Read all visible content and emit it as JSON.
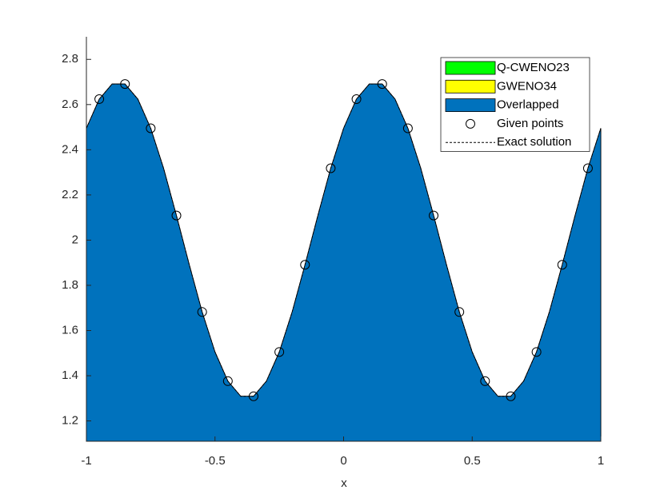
{
  "chart_data": {
    "type": "area",
    "xlabel": "x",
    "x": [
      -1,
      -0.95,
      -0.9,
      -0.85,
      -0.8,
      -0.75,
      -0.7,
      -0.65,
      -0.6,
      -0.55,
      -0.5,
      -0.45,
      -0.4,
      -0.35,
      -0.3,
      -0.25,
      -0.2,
      -0.15,
      -0.1,
      -0.05,
      0,
      0.05,
      0.1,
      0.15,
      0.2,
      0.25,
      0.3,
      0.35,
      0.4,
      0.45,
      0.5,
      0.55,
      0.6,
      0.65,
      0.7,
      0.75,
      0.8,
      0.85,
      0.9,
      0.95,
      1
    ],
    "series": [
      {
        "name": "Q-CWENO23",
        "kind": "area",
        "color": "#00ff00",
        "values": [
          2.495,
          2.624,
          2.691,
          2.691,
          2.624,
          2.495,
          2.318,
          2.109,
          1.891,
          1.682,
          1.505,
          1.376,
          1.309,
          1.309,
          1.376,
          1.505,
          1.682,
          1.891,
          2.109,
          2.318,
          2.495,
          2.624,
          2.691,
          2.691,
          2.624,
          2.495,
          2.318,
          2.109,
          1.891,
          1.682,
          1.505,
          1.376,
          1.309,
          1.309,
          1.376,
          1.505,
          1.682,
          1.891,
          2.109,
          2.318,
          2.495
        ]
      },
      {
        "name": "GWENO34",
        "kind": "area",
        "color": "#ffff00",
        "values": [
          2.495,
          2.624,
          2.691,
          2.691,
          2.624,
          2.495,
          2.318,
          2.109,
          1.891,
          1.682,
          1.505,
          1.376,
          1.309,
          1.309,
          1.376,
          1.505,
          1.682,
          1.891,
          2.109,
          2.318,
          2.495,
          2.624,
          2.691,
          2.691,
          2.624,
          2.495,
          2.318,
          2.109,
          1.891,
          1.682,
          1.505,
          1.376,
          1.309,
          1.309,
          1.376,
          1.505,
          1.682,
          1.891,
          2.109,
          2.318,
          2.495
        ]
      },
      {
        "name": "Overlapped",
        "kind": "area",
        "color": "#0072bd",
        "values": [
          2.495,
          2.624,
          2.691,
          2.691,
          2.624,
          2.495,
          2.318,
          2.109,
          1.891,
          1.682,
          1.505,
          1.376,
          1.309,
          1.309,
          1.376,
          1.505,
          1.682,
          1.891,
          2.109,
          2.318,
          2.495,
          2.624,
          2.691,
          2.691,
          2.624,
          2.495,
          2.318,
          2.109,
          1.891,
          1.682,
          1.505,
          1.376,
          1.309,
          1.309,
          1.376,
          1.505,
          1.682,
          1.891,
          2.109,
          2.318,
          2.495
        ]
      },
      {
        "name": "Given points",
        "kind": "scatter",
        "color": "#000000",
        "x": [
          -0.95,
          -0.85,
          -0.75,
          -0.65,
          -0.55,
          -0.45,
          -0.35,
          -0.25,
          -0.15,
          -0.05,
          0.05,
          0.15,
          0.25,
          0.35,
          0.45,
          0.55,
          0.65,
          0.75,
          0.85,
          0.95
        ],
        "values": [
          2.624,
          2.691,
          2.495,
          2.109,
          1.682,
          1.376,
          1.309,
          1.505,
          1.891,
          2.318,
          2.624,
          2.691,
          2.495,
          2.109,
          1.682,
          1.376,
          1.309,
          1.505,
          1.891,
          2.318
        ]
      },
      {
        "name": "Exact solution",
        "kind": "dashed-line",
        "color": "#000000",
        "values": [
          2.495,
          2.624,
          2.691,
          2.691,
          2.624,
          2.495,
          2.318,
          2.109,
          1.891,
          1.682,
          1.505,
          1.376,
          1.309,
          1.309,
          1.376,
          1.505,
          1.682,
          1.891,
          2.109,
          2.318,
          2.495,
          2.624,
          2.691,
          2.691,
          2.624,
          2.495,
          2.318,
          2.109,
          1.891,
          1.682,
          1.505,
          1.376,
          1.309,
          1.309,
          1.376,
          1.505,
          1.682,
          1.891,
          2.109,
          2.318,
          2.495
        ]
      }
    ],
    "xlim": [
      -1,
      1
    ],
    "xticks": [
      -1,
      -0.5,
      0,
      0.5,
      1
    ],
    "ylim": [
      1.11,
      2.9
    ],
    "yticks": [
      1.2,
      1.4,
      1.6,
      1.8,
      2,
      2.2,
      2.4,
      2.6,
      2.8
    ],
    "grid": false,
    "legend": "northeast"
  }
}
